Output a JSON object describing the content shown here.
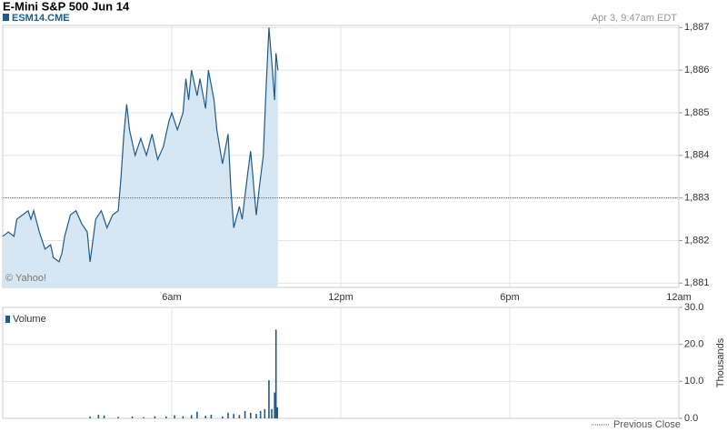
{
  "chart_data": [
    {
      "type": "area",
      "title": "E-Mini S&P 500 Jun 14",
      "symbol": "ESM14.CME",
      "timestamp": "Apr 3, 9:47am EDT",
      "watermark": "© Yahoo!",
      "color": "#1f5a8c",
      "fill_color": "#d6e6f2",
      "x": [
        0,
        0.2,
        0.4,
        0.5,
        0.7,
        0.9,
        1.0,
        1.1,
        1.3,
        1.5,
        1.7,
        1.8,
        2.0,
        2.1,
        2.2,
        2.4,
        2.6,
        2.8,
        3.0,
        3.1,
        3.3,
        3.5,
        3.7,
        3.9,
        4.1,
        4.2,
        4.3,
        4.4,
        4.5,
        4.7,
        4.9,
        5.1,
        5.3,
        5.5,
        5.7,
        5.9,
        6.0,
        6.2,
        6.4,
        6.5,
        6.6,
        6.7,
        6.9,
        7.0,
        7.2,
        7.3,
        7.5,
        7.6,
        7.8,
        8.0,
        8.1,
        8.2,
        8.4,
        8.5,
        8.7,
        8.8,
        9.0,
        9.1,
        9.25,
        9.35,
        9.45,
        9.55,
        9.65,
        9.7,
        9.77
      ],
      "values": [
        1882.1,
        1882.2,
        1882.1,
        1882.5,
        1882.6,
        1882.7,
        1882.5,
        1882.7,
        1882.2,
        1881.8,
        1881.9,
        1881.6,
        1881.5,
        1881.7,
        1882.1,
        1882.6,
        1882.7,
        1882.4,
        1882.2,
        1881.5,
        1882.5,
        1882.7,
        1882.3,
        1882.6,
        1882.7,
        1883.5,
        1884.5,
        1885.2,
        1884.6,
        1884.0,
        1884.4,
        1884.0,
        1884.5,
        1883.9,
        1884.2,
        1884.8,
        1885.0,
        1884.6,
        1885.0,
        1885.8,
        1885.3,
        1886.0,
        1885.4,
        1885.8,
        1885.1,
        1886.0,
        1885.3,
        1884.6,
        1883.8,
        1884.5,
        1883.2,
        1882.3,
        1882.8,
        1882.5,
        1883.6,
        1884.1,
        1882.6,
        1883.2,
        1884.0,
        1885.6,
        1887.0,
        1886.2,
        1885.3,
        1886.4,
        1886.0
      ],
      "xlim": [
        0,
        24
      ],
      "xticks": [
        {
          "value": 6,
          "label": "6am"
        },
        {
          "value": 12,
          "label": "12pm"
        },
        {
          "value": 18,
          "label": "6pm"
        },
        {
          "value": 24,
          "label": "12am"
        }
      ],
      "ylim": [
        1880.9,
        1887.05
      ],
      "yticks": [
        {
          "value": 1881,
          "label": "1,881"
        },
        {
          "value": 1882,
          "label": "1,882"
        },
        {
          "value": 1883,
          "label": "1,883"
        },
        {
          "value": 1884,
          "label": "1,884"
        },
        {
          "value": 1885,
          "label": "1,885"
        },
        {
          "value": 1886,
          "label": "1,886"
        },
        {
          "value": 1887,
          "label": "1,887"
        }
      ],
      "previous_close": 1883,
      "previous_close_label": "Previous Close",
      "previous_close_color": "#cc3333",
      "grid": true
    },
    {
      "type": "bar",
      "ylabel": "Thousands",
      "x": [
        3.1,
        3.4,
        3.6,
        4.1,
        4.6,
        5.0,
        5.4,
        5.8,
        6.1,
        6.4,
        6.7,
        6.9,
        7.2,
        7.4,
        7.8,
        8.0,
        8.2,
        8.4,
        8.6,
        8.8,
        9.0,
        9.15,
        9.3,
        9.45,
        9.55,
        9.65,
        9.7,
        9.75
      ],
      "series": [
        {
          "name": "Volume",
          "color": "#1f5a8c",
          "values": [
            0.5,
            1,
            0.8,
            0.4,
            0.5,
            0.3,
            0.6,
            0.5,
            0.8,
            0.6,
            0.9,
            1.8,
            0.7,
            1.0,
            0.5,
            1.5,
            1.2,
            0.9,
            2.0,
            1.5,
            1.2,
            2.0,
            2.5,
            10.3,
            2.5,
            7.0,
            24.0,
            3.0
          ]
        }
      ],
      "xlim": [
        0,
        24
      ],
      "ylim": [
        0,
        30
      ],
      "yticks": [
        {
          "value": 0,
          "label": "0.0"
        },
        {
          "value": 10,
          "label": "10.0"
        },
        {
          "value": 20,
          "label": "20.0"
        },
        {
          "value": 30,
          "label": "30.0"
        }
      ],
      "grid": true
    }
  ]
}
